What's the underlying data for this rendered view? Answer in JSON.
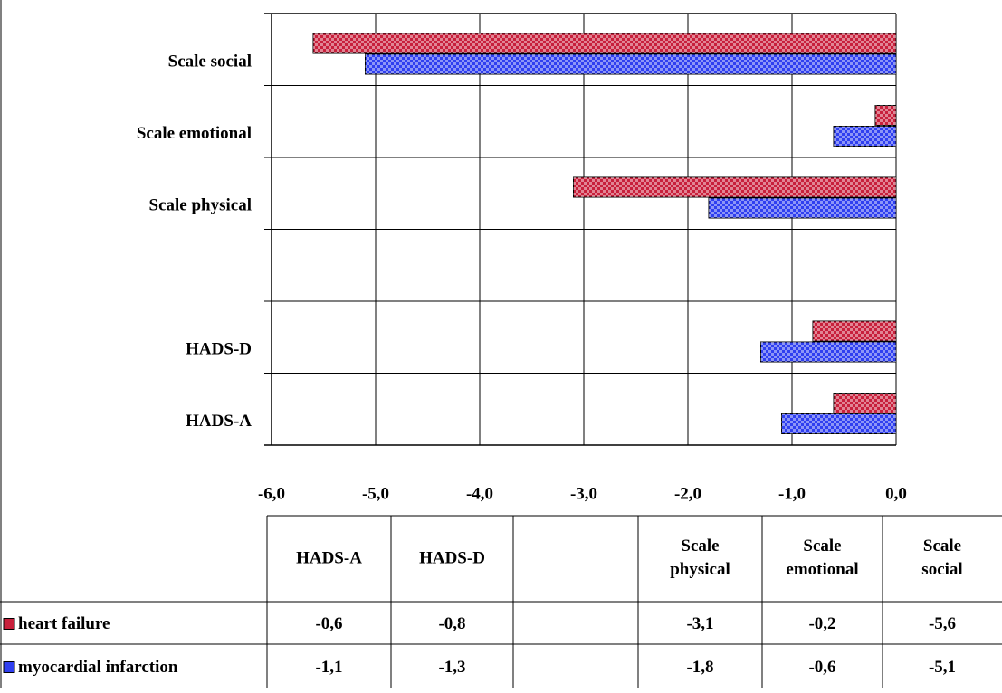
{
  "chart_data": {
    "type": "bar",
    "orientation": "horizontal",
    "categories": [
      "HADS-A",
      "HADS-D",
      null,
      "Scale physical",
      "Scale emotional",
      "Scale social"
    ],
    "series": [
      {
        "name": "heart failure",
        "color": "#c8203c",
        "values": [
          -0.6,
          -0.8,
          null,
          -3.1,
          -0.2,
          -5.6
        ],
        "value_labels": [
          "-0,6",
          "-0,8",
          null,
          "-3,1",
          "-0,2",
          "-5,6"
        ]
      },
      {
        "name": "myocardial infarction",
        "color": "#2f3ff0",
        "values": [
          -1.1,
          -1.3,
          null,
          -1.8,
          -0.6,
          -5.1
        ],
        "value_labels": [
          "-1,1",
          "-1,3",
          null,
          "-1,8",
          "-0,6",
          "-5,1"
        ]
      }
    ],
    "xlim": [
      -6,
      0
    ],
    "xticks": [
      {
        "value": -6,
        "label": "-6,0"
      },
      {
        "value": -5,
        "label": "-5,0"
      },
      {
        "value": -4,
        "label": "-4,0"
      },
      {
        "value": -3,
        "label": "-3,0"
      },
      {
        "value": -2,
        "label": "-2,0"
      },
      {
        "value": -1,
        "label": "-1,0"
      },
      {
        "value": 0,
        "label": "0,0"
      }
    ],
    "grid": true,
    "data_table": true
  }
}
